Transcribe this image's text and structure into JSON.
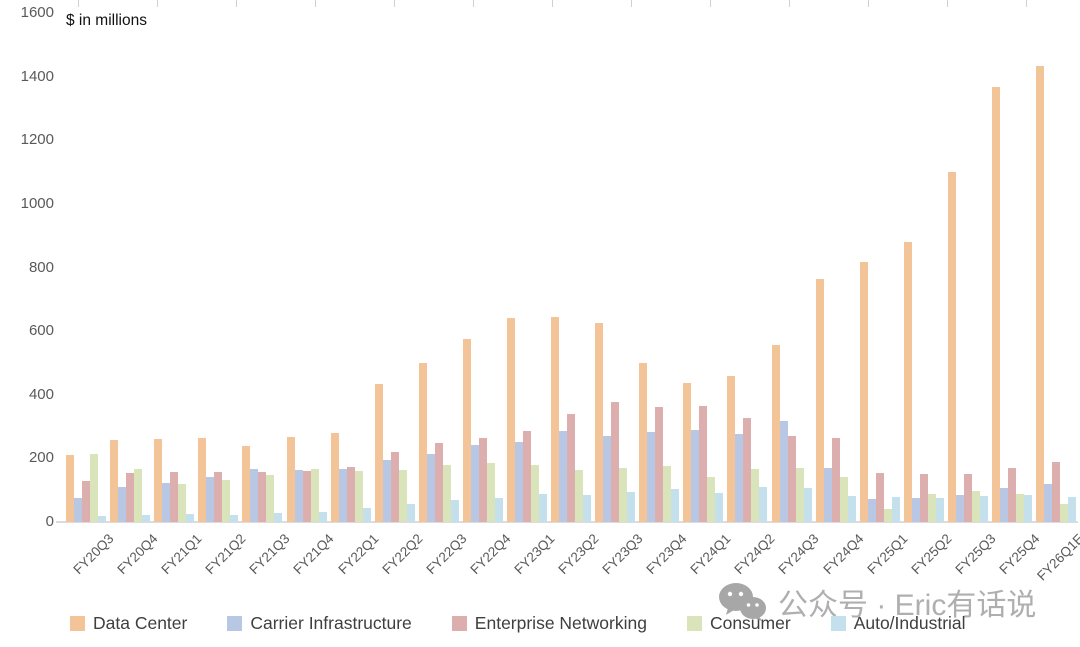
{
  "chart": {
    "units_label": "$ in millions"
  },
  "watermark": {
    "text": "公众号 · Eric有话说",
    "icon": "wechat-icon"
  },
  "chart_data": {
    "type": "bar",
    "title": "",
    "subtitle": "",
    "xlabel": "",
    "ylabel": "$ in millions",
    "ylim": [
      0,
      1600
    ],
    "yticks": [
      0,
      200,
      400,
      600,
      800,
      1000,
      1200,
      1400,
      1600
    ],
    "grid": false,
    "legend_position": "bottom",
    "categories": [
      "FY20Q3",
      "FY20Q4",
      "FY21Q1",
      "FY21Q2",
      "FY21Q3",
      "FY21Q4",
      "FY22Q1",
      "FY22Q2",
      "FY22Q3",
      "FY22Q4",
      "FY23Q1",
      "FY23Q2",
      "FY23Q3",
      "FY23Q4",
      "FY24Q1",
      "FY24Q2",
      "FY24Q3",
      "FY24Q4",
      "FY25Q1",
      "FY25Q2",
      "FY25Q3",
      "FY25Q4",
      "FY26Q1E"
    ],
    "series": [
      {
        "name": "Data Center",
        "color": "#F3C498",
        "values": [
          210,
          258,
          262,
          265,
          240,
          268,
          280,
          434,
          500,
          576,
          641,
          643,
          627,
          501,
          436,
          460,
          556,
          765,
          816,
          881,
          1101,
          1366,
          1435
        ]
      },
      {
        "name": "Carrier Infrastructure",
        "color": "#B7C7E4",
        "values": [
          76,
          110,
          122,
          141,
          166,
          163,
          167,
          196,
          215,
          241,
          253,
          285,
          271,
          282,
          290,
          276,
          317,
          171,
          72,
          76,
          85,
          106,
          118
        ]
      },
      {
        "name": "Enterprise Networking",
        "color": "#DCAEAE",
        "values": [
          128,
          154,
          158,
          157,
          156,
          160,
          174,
          220,
          247,
          263,
          285,
          341,
          377,
          362,
          364,
          328,
          271,
          265,
          153,
          151,
          151,
          171,
          190
        ]
      },
      {
        "name": "Consumer",
        "color": "#D9E4BA",
        "values": [
          213,
          168,
          120,
          133,
          147,
          166,
          161,
          162,
          180,
          186,
          178,
          164,
          170,
          175,
          140,
          168,
          169,
          142,
          42,
          89,
          97,
          88,
          57
        ]
      },
      {
        "name": "Auto/Industrial",
        "color": "#C4E0EC",
        "values": [
          19,
          21,
          24,
          22,
          28,
          31,
          45,
          56,
          68,
          77,
          89,
          84,
          94,
          105,
          92,
          110,
          106,
          83,
          78,
          76,
          83,
          86,
          78
        ]
      }
    ]
  }
}
